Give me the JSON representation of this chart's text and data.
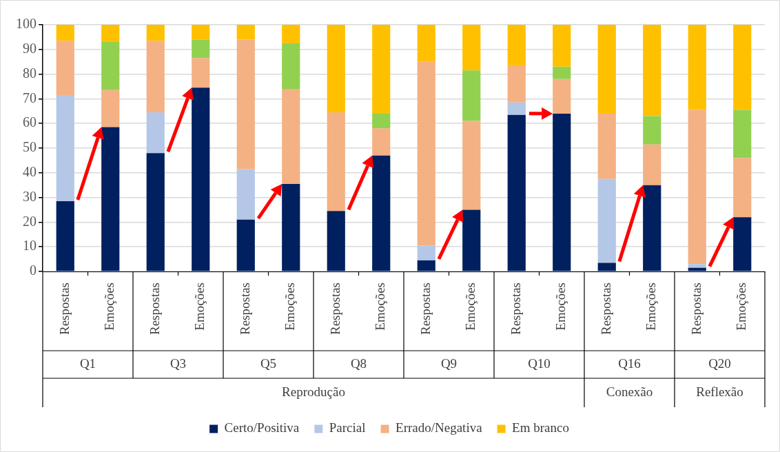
{
  "chart_data": {
    "type": "bar",
    "stacked": true,
    "categories": [
      "Respostas",
      "Emoções",
      "Respostas",
      "Emoções",
      "Respostas",
      "Emoções",
      "Respostas",
      "Emoções",
      "Respostas",
      "Emoções",
      "Respostas",
      "Emoções",
      "Respostas",
      "Emoções",
      "Respostas",
      "Emoções"
    ],
    "series": [
      {
        "name": "Certo/Positiva",
        "color": "#002060",
        "values": [
          28.5,
          58.5,
          48,
          74.5,
          21,
          35.5,
          24.5,
          47,
          4.5,
          25,
          63.5,
          64,
          3.5,
          35,
          1.5,
          22
        ]
      },
      {
        "name": "Parcial",
        "color": "#b4c7e7",
        "values": [
          43,
          0,
          16.5,
          0,
          20.5,
          0,
          0,
          0,
          6,
          0,
          5,
          0,
          34,
          0,
          1.5,
          0
        ]
      },
      {
        "name": "Errado/Negativa",
        "color": "#f4b183",
        "values": [
          22,
          15,
          29,
          12,
          52.5,
          38.5,
          40,
          11,
          74.5,
          36,
          15,
          14,
          26.5,
          16.5,
          62.5,
          24
        ]
      },
      {
        "color": "#92d050",
        "values": [
          0,
          19.5,
          0,
          7.5,
          0,
          18.5,
          0,
          6,
          0,
          20.5,
          0,
          5,
          0,
          11.5,
          0,
          19.5
        ]
      },
      {
        "name": "Em branco",
        "color": "#ffc000",
        "values": [
          6.5,
          7,
          6.5,
          6,
          6,
          7.5,
          35.5,
          36,
          15,
          18.5,
          16.5,
          17,
          36,
          37,
          34.5,
          34.5
        ]
      }
    ],
    "ylim": [
      0,
      100
    ],
    "yticks": [
      0,
      10,
      20,
      30,
      40,
      50,
      60,
      70,
      80,
      90,
      100
    ],
    "grid": "y",
    "legend": "bottom",
    "annotations": [
      "Q1",
      "Q3",
      "Q5",
      "Q8",
      "Q9",
      "Q10",
      "Q16",
      "Q20",
      "Reprodução",
      "Conexão",
      "Reflexão"
    ]
  }
}
